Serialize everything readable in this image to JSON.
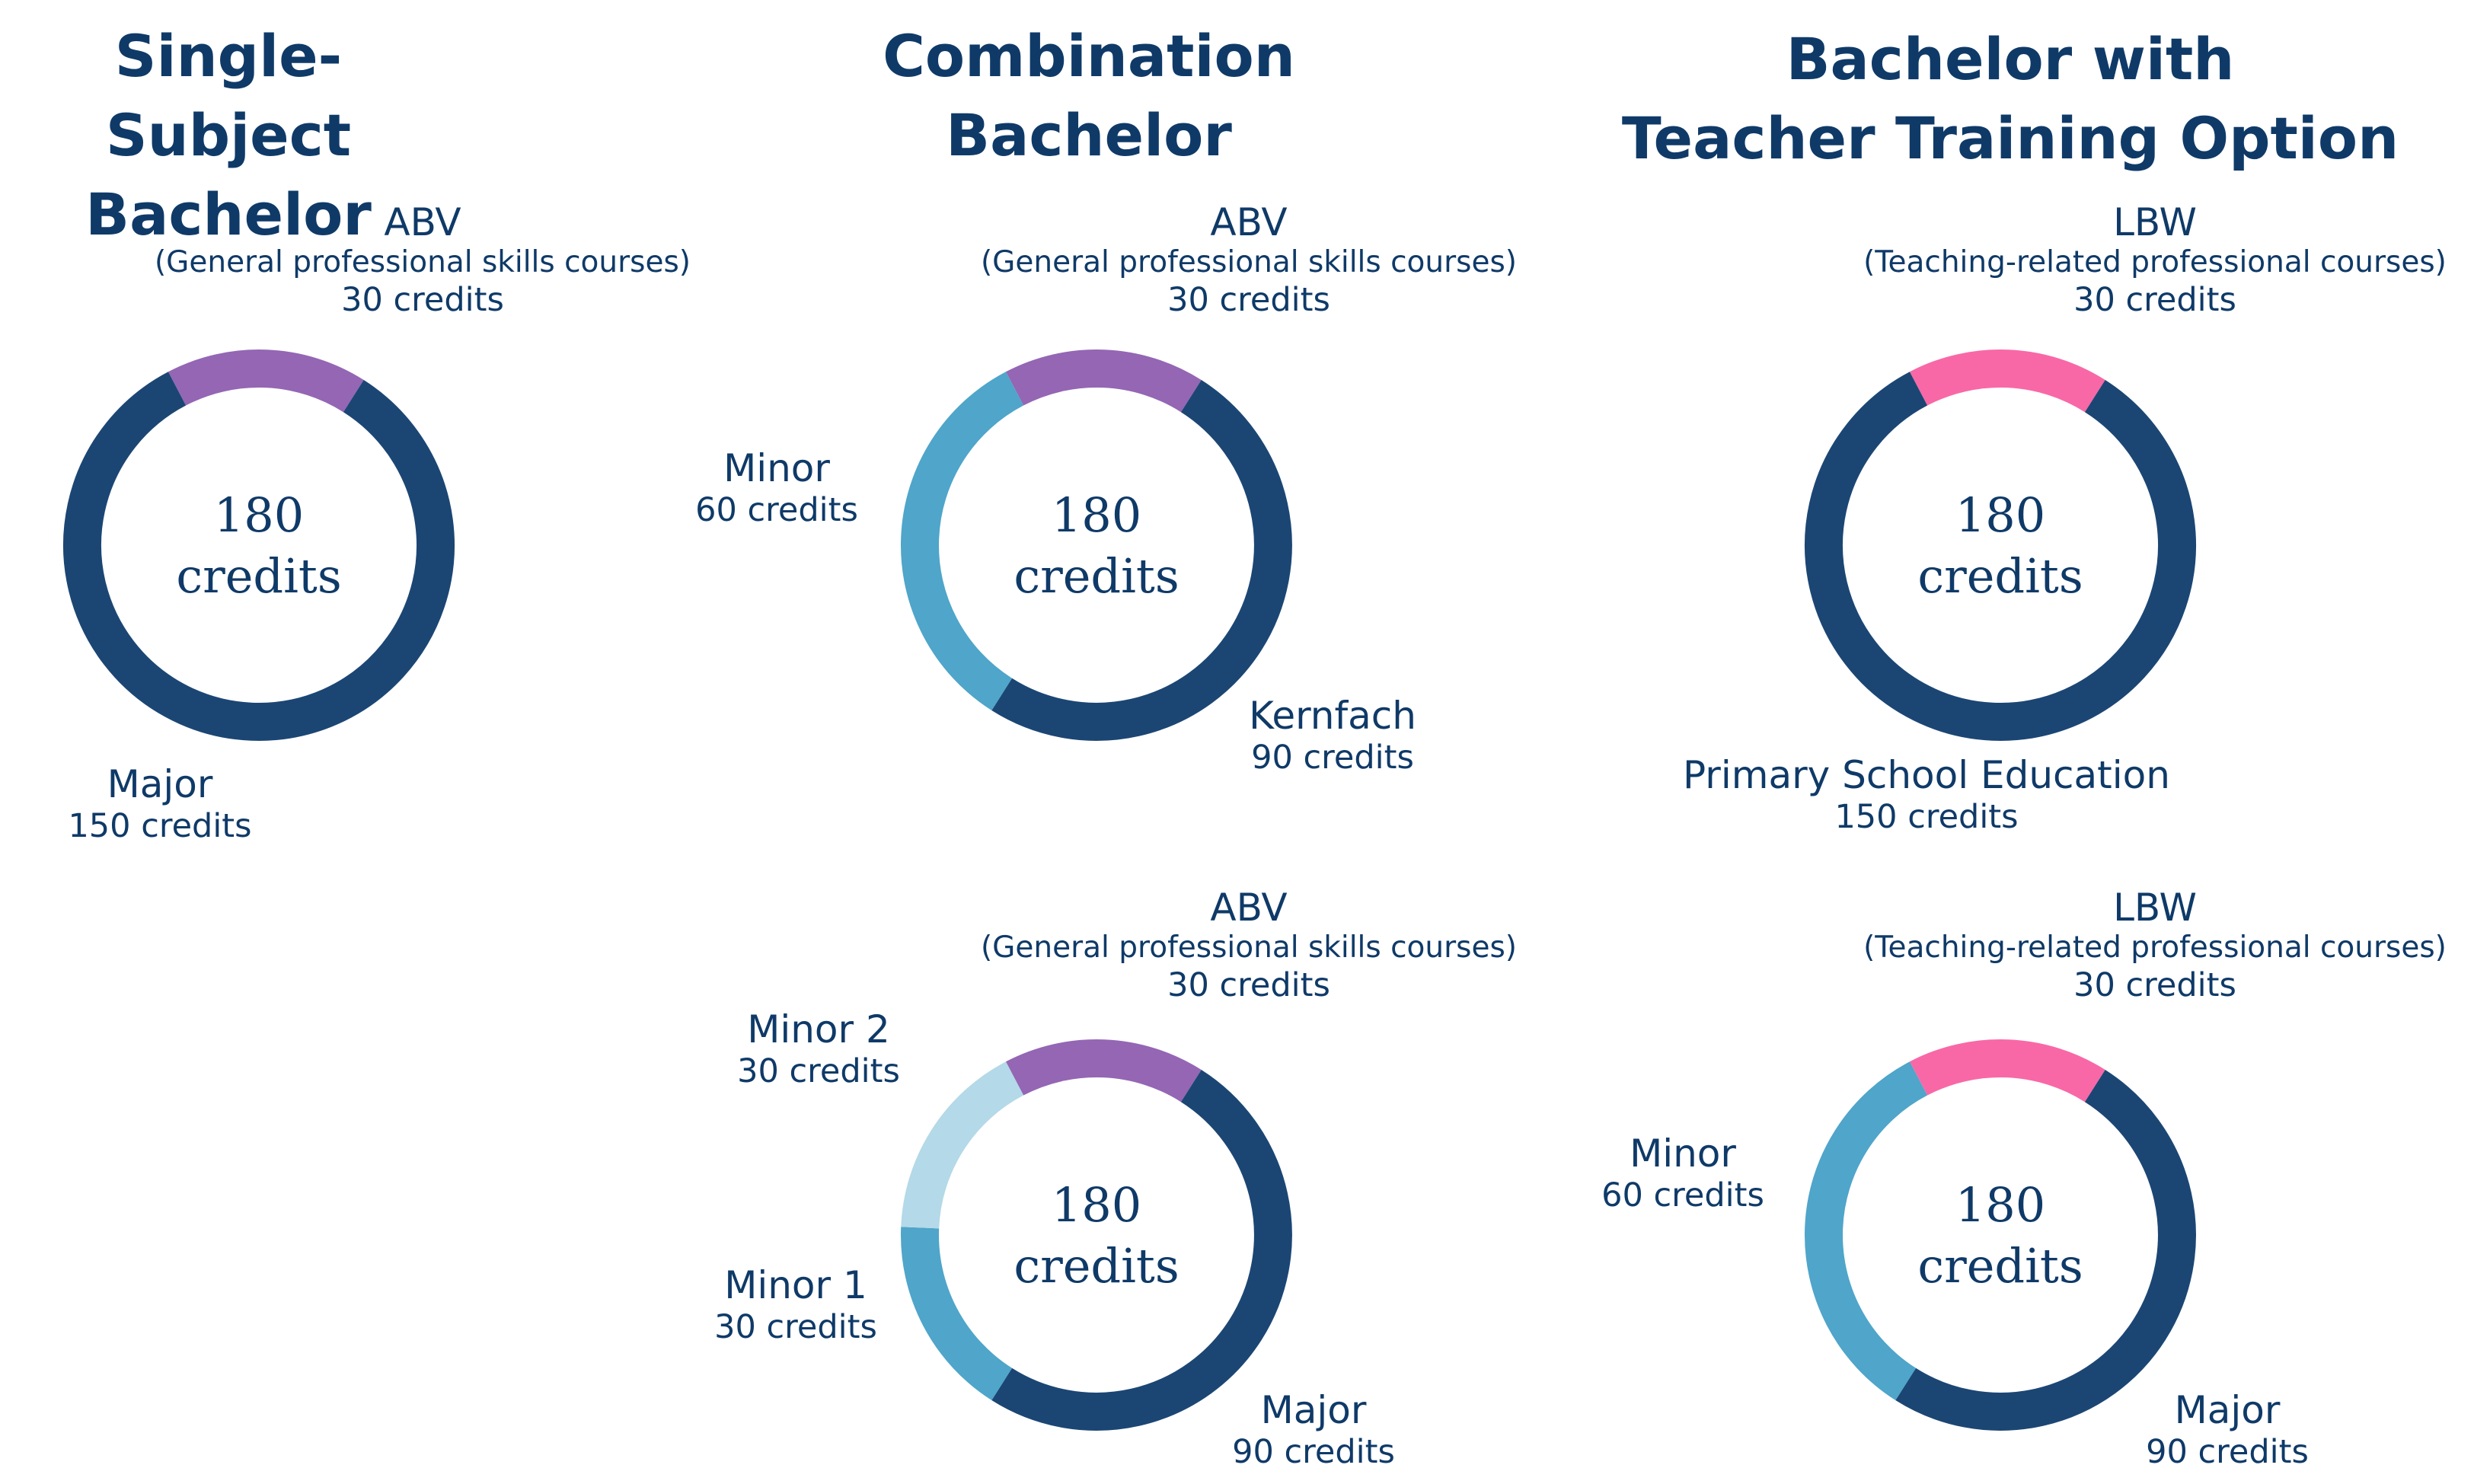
{
  "titles": {
    "single": "Single-Subject\nBachelor",
    "combination": "Combination\nBachelor",
    "teacher": "Bachelor with\nTeacher Training Option"
  },
  "center_label": {
    "number": "180",
    "unit": "credits"
  },
  "chart_data": [
    {
      "type": "pie",
      "group": "Single-Subject Bachelor",
      "total": "180 credits",
      "slices": [
        {
          "label": "ABV",
          "sublabel": "(General professional skills courses)",
          "credits_text": "30 credits",
          "value": 30,
          "color": "#9466b4"
        },
        {
          "label": "Major",
          "credits_text": "150 credits",
          "value": 150,
          "color": "#1b4674"
        }
      ]
    },
    {
      "type": "pie",
      "group": "Combination Bachelor",
      "total": "180 credits",
      "slices": [
        {
          "label": "ABV",
          "sublabel": "(General professional skills courses)",
          "credits_text": "30 credits",
          "value": 30,
          "color": "#9466b4"
        },
        {
          "label": "Kernfach",
          "credits_text": "90 credits",
          "value": 90,
          "color": "#1b4674"
        },
        {
          "label": "Minor",
          "credits_text": "60 credits",
          "value": 60,
          "color": "#4fa5ca"
        }
      ]
    },
    {
      "type": "pie",
      "group": "Combination Bachelor",
      "total": "180 credits",
      "slices": [
        {
          "label": "ABV",
          "sublabel": "(General professional skills courses)",
          "credits_text": "30 credits",
          "value": 30,
          "color": "#9466b4"
        },
        {
          "label": "Major",
          "credits_text": "90 credits",
          "value": 90,
          "color": "#1b4674"
        },
        {
          "label": "Minor 1",
          "credits_text": "30 credits",
          "value": 30,
          "color": "#4fa5ca"
        },
        {
          "label": "Minor 2",
          "credits_text": "30 credits",
          "value": 30,
          "color": "#b4d9e8"
        }
      ]
    },
    {
      "type": "pie",
      "group": "Bachelor with Teacher Training Option",
      "total": "180 credits",
      "slices": [
        {
          "label": "LBW",
          "sublabel": "(Teaching-related professional courses)",
          "credits_text": "30 credits",
          "value": 30,
          "color": "#f868a6"
        },
        {
          "label": "Primary School Education",
          "credits_text": "150 credits",
          "value": 150,
          "color": "#1b4674"
        }
      ]
    },
    {
      "type": "pie",
      "group": "Bachelor with Teacher Training Option",
      "total": "180 credits",
      "slices": [
        {
          "label": "LBW",
          "sublabel": "(Teaching-related professional courses)",
          "credits_text": "30 credits",
          "value": 30,
          "color": "#f868a6"
        },
        {
          "label": "Major",
          "credits_text": "90 credits",
          "value": 90,
          "color": "#1b4674"
        },
        {
          "label": "Minor",
          "credits_text": "60 credits",
          "value": 60,
          "color": "#4fa5ca"
        }
      ]
    }
  ]
}
